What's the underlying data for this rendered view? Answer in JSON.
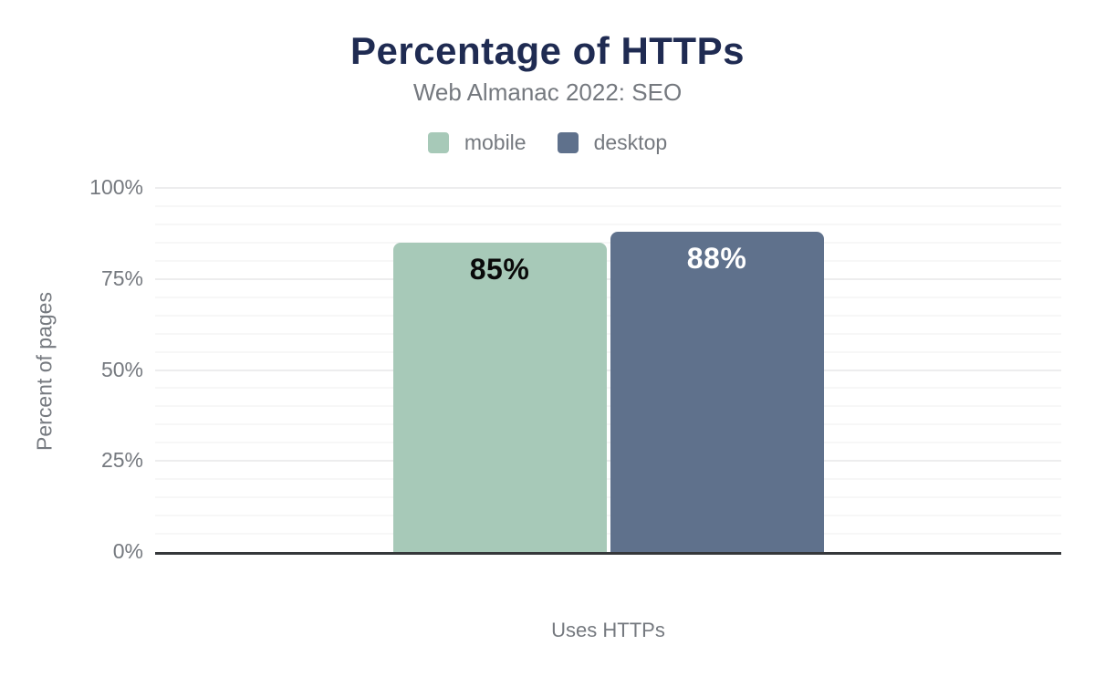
{
  "chart_data": {
    "type": "bar",
    "title": "Percentage of HTTPs",
    "subtitle": "Web Almanac 2022: SEO",
    "categories": [
      "Uses HTTPs"
    ],
    "series": [
      {
        "name": "mobile",
        "values": [
          85
        ],
        "value_labels": [
          "85%"
        ],
        "color": "#a7c9b8",
        "label_color": "#0a0a0a"
      },
      {
        "name": "desktop",
        "values": [
          88
        ],
        "value_labels": [
          "88%"
        ],
        "color": "#5f718c",
        "label_color": "#ffffff"
      }
    ],
    "xlabel": "Uses HTTPs",
    "ylabel": "Percent of pages",
    "ylim": [
      0,
      100
    ],
    "yticks": [
      {
        "value": 0,
        "label": "0%"
      },
      {
        "value": 25,
        "label": "25%"
      },
      {
        "value": 50,
        "label": "50%"
      },
      {
        "value": 75,
        "label": "75%"
      },
      {
        "value": 100,
        "label": "100%"
      }
    ],
    "grid": {
      "minor_step": 5,
      "major_step": 25,
      "minor_color": "#f7f7f7",
      "major_color": "#ededee"
    },
    "legend": {
      "position": "top",
      "items": [
        {
          "label": "mobile",
          "color": "#a7c9b8"
        },
        {
          "label": "desktop",
          "color": "#5f718c"
        }
      ]
    },
    "colors": {
      "title": "#1f2b52",
      "text_gray": "#75797f",
      "axis": "#35373a",
      "background": "#ffffff"
    }
  }
}
